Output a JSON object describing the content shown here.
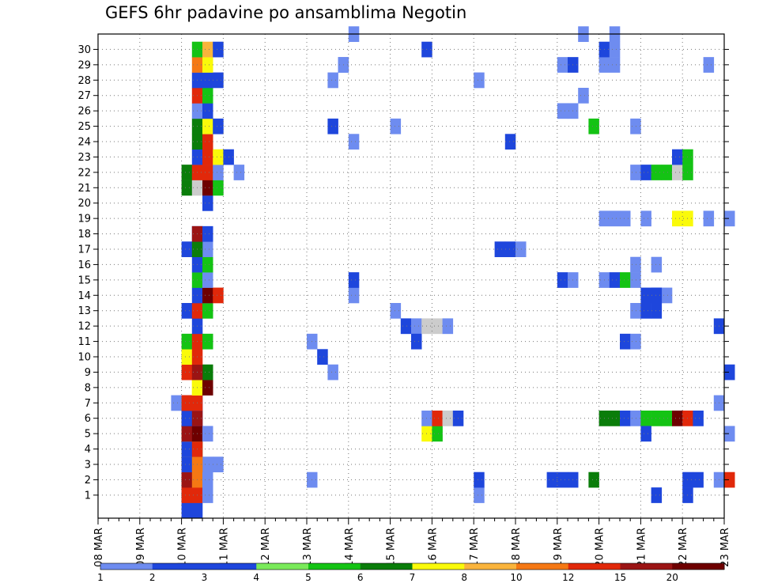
{
  "chart_data": {
    "type": "heatmap",
    "title": "GEFS 6hr padavine po ansamblima Negotin",
    "xlabel": "",
    "ylabel": "",
    "x_tick_labels": [
      "08 MAR",
      "09 MAR",
      "10 MAR",
      "11 MAR",
      "12 MAR",
      "13 MAR",
      "14 MAR",
      "15 MAR",
      "16 MAR",
      "17 MAR",
      "18 MAR",
      "19 MAR",
      "20 MAR",
      "21 MAR",
      "22 MAR",
      "23 MAR"
    ],
    "y_tick_labels": [
      "1",
      "2",
      "3",
      "4",
      "5",
      "6",
      "7",
      "8",
      "9",
      "10",
      "11",
      "12",
      "13",
      "14",
      "15",
      "16",
      "17",
      "18",
      "19",
      "20",
      "21",
      "22",
      "23",
      "24",
      "25",
      "26",
      "27",
      "28",
      "29",
      "30"
    ],
    "xlim": [
      0,
      60
    ],
    "ylim": [
      0,
      30
    ],
    "grid": true,
    "legend_placement": "bottom",
    "legend_levels": [
      "1",
      "2",
      "3",
      "4",
      "5",
      "6",
      "7",
      "8",
      "10",
      "12",
      "15",
      "20"
    ],
    "legend_colors": [
      "#b4c8f5",
      "#6e8cf0",
      "#1e46dc",
      "#1e46dc",
      "#7aea5a",
      "#14c314",
      "#0a7d0a",
      "#fafa0a",
      "#fab43c",
      "#f57814",
      "#e1280a",
      "#9b1414",
      "#6e0000"
    ],
    "cells": [
      [
        8,
        0,
        2
      ],
      [
        8,
        1,
        3
      ],
      [
        9,
        0,
        2
      ],
      [
        8,
        1,
        10
      ],
      [
        8,
        2,
        10
      ],
      [
        8,
        3,
        10
      ],
      [
        9,
        1,
        10
      ],
      [
        9,
        2,
        10
      ],
      [
        9,
        3,
        10
      ],
      [
        10,
        1,
        1
      ],
      [
        10,
        2,
        1
      ],
      [
        8,
        2,
        11
      ],
      [
        8,
        3,
        8
      ],
      [
        8,
        4,
        7
      ],
      [
        9,
        2,
        9
      ],
      [
        9,
        3,
        4
      ],
      [
        9,
        4,
        2
      ],
      [
        10,
        2,
        1
      ],
      [
        10,
        3,
        1
      ],
      [
        11,
        3,
        1
      ],
      [
        8,
        3,
        3
      ],
      [
        8,
        4,
        8
      ],
      [
        8,
        5,
        8
      ],
      [
        9,
        3,
        9
      ],
      [
        9,
        4,
        4
      ],
      [
        9,
        5,
        4
      ],
      [
        8,
        4,
        3
      ],
      [
        8,
        5,
        8
      ],
      [
        9,
        4,
        10
      ],
      [
        9,
        5,
        4
      ],
      [
        8,
        5,
        11
      ],
      [
        8,
        6,
        12
      ],
      [
        9,
        5,
        12
      ],
      [
        9,
        6,
        3
      ],
      [
        10,
        5,
        1
      ],
      [
        8,
        6,
        2
      ],
      [
        8,
        7,
        11
      ],
      [
        9,
        6,
        11
      ],
      [
        9,
        7,
        3
      ],
      [
        7,
        7,
        1
      ],
      [
        8,
        7,
        10
      ],
      [
        9,
        7,
        10
      ],
      [
        9,
        8,
        7
      ],
      [
        9,
        8,
        7
      ],
      [
        9,
        9,
        8
      ],
      [
        10,
        8,
        12
      ],
      [
        10,
        9,
        6
      ],
      [
        8,
        9,
        10
      ],
      [
        9,
        9,
        11
      ],
      [
        8,
        10,
        7
      ],
      [
        9,
        10,
        10
      ],
      [
        8,
        11,
        5
      ],
      [
        9,
        11,
        10
      ],
      [
        10,
        11,
        5
      ],
      [
        9,
        12,
        2
      ],
      [
        8,
        13,
        2
      ],
      [
        9,
        13,
        10
      ],
      [
        10,
        13,
        5
      ],
      [
        10,
        14,
        1
      ],
      [
        9,
        14,
        2
      ],
      [
        10,
        14,
        12
      ],
      [
        11,
        14,
        10
      ],
      [
        9,
        15,
        5
      ],
      [
        10,
        15,
        1
      ],
      [
        9,
        16,
        2
      ],
      [
        10,
        16,
        5
      ],
      [
        10,
        17,
        1
      ],
      [
        8,
        17,
        2
      ],
      [
        9,
        17,
        6
      ],
      [
        9,
        18,
        3
      ],
      [
        9,
        18,
        11
      ],
      [
        10,
        18,
        3
      ],
      [
        10,
        20,
        3
      ],
      [
        10,
        21,
        1
      ],
      [
        8,
        21,
        6
      ],
      [
        9,
        21,
        13
      ],
      [
        10,
        21,
        12
      ],
      [
        11,
        21,
        5
      ],
      [
        8,
        22,
        6
      ],
      [
        9,
        22,
        10
      ],
      [
        10,
        22,
        10
      ],
      [
        11,
        22,
        1
      ],
      [
        9,
        23,
        3
      ],
      [
        10,
        23,
        10
      ],
      [
        11,
        23,
        7
      ],
      [
        12,
        23,
        3
      ],
      [
        9,
        24,
        6
      ],
      [
        10,
        24,
        10
      ],
      [
        10,
        25,
        1
      ],
      [
        9,
        25,
        6
      ],
      [
        10,
        25,
        7
      ],
      [
        11,
        25,
        2
      ],
      [
        9,
        26,
        1
      ],
      [
        10,
        26,
        3
      ],
      [
        9,
        27,
        10
      ],
      [
        10,
        27,
        5
      ],
      [
        9,
        28,
        2
      ],
      [
        10,
        28,
        3
      ],
      [
        11,
        28,
        2
      ],
      [
        9,
        29,
        9
      ],
      [
        10,
        29,
        7
      ],
      [
        9,
        30,
        5
      ],
      [
        10,
        30,
        8
      ],
      [
        11,
        30,
        3
      ],
      [
        13,
        22,
        1
      ],
      [
        20,
        2,
        1
      ],
      [
        20,
        11,
        1
      ],
      [
        21,
        10,
        3
      ],
      [
        22,
        9,
        1
      ],
      [
        22,
        25,
        3
      ],
      [
        22,
        28,
        1
      ],
      [
        23,
        29,
        1
      ],
      [
        23,
        29,
        1
      ],
      [
        24,
        14,
        1
      ],
      [
        24,
        15,
        2
      ],
      [
        24,
        24,
        1
      ],
      [
        24,
        31,
        1
      ],
      [
        28,
        13,
        1
      ],
      [
        28,
        25,
        1
      ],
      [
        29,
        12,
        3
      ],
      [
        30,
        12,
        1
      ],
      [
        30,
        11,
        2
      ],
      [
        31,
        12,
        14
      ],
      [
        32,
        12,
        13
      ],
      [
        33,
        12,
        1
      ],
      [
        31,
        5,
        7
      ],
      [
        32,
        5,
        5
      ],
      [
        31,
        6,
        1
      ],
      [
        32,
        6,
        10
      ],
      [
        33,
        6,
        14
      ],
      [
        34,
        6,
        2
      ],
      [
        31,
        30,
        3
      ],
      [
        36,
        1,
        1
      ],
      [
        36,
        2,
        2
      ],
      [
        36,
        28,
        1
      ],
      [
        38,
        17,
        2
      ],
      [
        39,
        17,
        3
      ],
      [
        40,
        17,
        1
      ],
      [
        39,
        24,
        3
      ],
      [
        43,
        2,
        3
      ],
      [
        44,
        2,
        2
      ],
      [
        45,
        2,
        2
      ],
      [
        47,
        2,
        6
      ],
      [
        44,
        15,
        2
      ],
      [
        45,
        15,
        1
      ],
      [
        44,
        26,
        1
      ],
      [
        45,
        26,
        1
      ],
      [
        44,
        29,
        1
      ],
      [
        45,
        29,
        2
      ],
      [
        46,
        27,
        1
      ],
      [
        46,
        31,
        1
      ],
      [
        47,
        25,
        5
      ],
      [
        48,
        6,
        6
      ],
      [
        49,
        6,
        6
      ],
      [
        50,
        6,
        3
      ],
      [
        51,
        6,
        1
      ],
      [
        52,
        6,
        5
      ],
      [
        53,
        6,
        5
      ],
      [
        54,
        6,
        5
      ],
      [
        55,
        6,
        12
      ],
      [
        56,
        6,
        10
      ],
      [
        57,
        6,
        2
      ],
      [
        48,
        15,
        1
      ],
      [
        49,
        15,
        2
      ],
      [
        50,
        15,
        5
      ],
      [
        51,
        15,
        1
      ],
      [
        48,
        19,
        1
      ],
      [
        49,
        19,
        1
      ],
      [
        50,
        19,
        1
      ],
      [
        52,
        19,
        1
      ],
      [
        55,
        19,
        7
      ],
      [
        56,
        19,
        7
      ],
      [
        58,
        19,
        1
      ],
      [
        48,
        29,
        1
      ],
      [
        49,
        29,
        1
      ],
      [
        48,
        30,
        2
      ],
      [
        49,
        30,
        1
      ],
      [
        49,
        31,
        1
      ],
      [
        50,
        11,
        2
      ],
      [
        51,
        11,
        1
      ],
      [
        51,
        16,
        1
      ],
      [
        51,
        22,
        1
      ],
      [
        52,
        22,
        2
      ],
      [
        53,
        22,
        5
      ],
      [
        54,
        22,
        5
      ],
      [
        55,
        22,
        13
      ],
      [
        56,
        22,
        5
      ],
      [
        51,
        25,
        1
      ],
      [
        52,
        14,
        3
      ],
      [
        53,
        14,
        3
      ],
      [
        54,
        14,
        1
      ],
      [
        53,
        16,
        1
      ],
      [
        52,
        5,
        2
      ],
      [
        53,
        14,
        3
      ],
      [
        53,
        1,
        3
      ],
      [
        56,
        1,
        2
      ],
      [
        56,
        2,
        2
      ],
      [
        57,
        2,
        2
      ],
      [
        59,
        2,
        1
      ],
      [
        60,
        2,
        10
      ],
      [
        55,
        23,
        2
      ],
      [
        56,
        23,
        5
      ],
      [
        59,
        7,
        1
      ],
      [
        59,
        12,
        2
      ],
      [
        60,
        9,
        3
      ],
      [
        60,
        5,
        1
      ],
      [
        60,
        19,
        1
      ],
      [
        58,
        29,
        1
      ],
      [
        51,
        13,
        1
      ],
      [
        52,
        13,
        2
      ],
      [
        53,
        13,
        3
      ]
    ]
  }
}
